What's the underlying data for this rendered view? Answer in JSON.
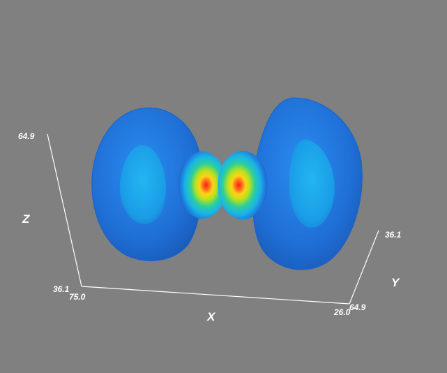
{
  "scene": {
    "background_color": "#808080",
    "axis_color": "#ffffff",
    "colormap": [
      "#1f6fd6",
      "#19b4e8",
      "#2ecf9a",
      "#b8e21a",
      "#ffd21a",
      "#ff6a1a",
      "#ff1a1a"
    ]
  },
  "axes": {
    "x": {
      "title": "X",
      "min_label": "75.0",
      "max_label": "26.0"
    },
    "y": {
      "title": "Y",
      "min_label": "64.9",
      "max_label": "36.1"
    },
    "z": {
      "title": "Z",
      "min_label": "36.1",
      "max_label": "64.9"
    }
  }
}
